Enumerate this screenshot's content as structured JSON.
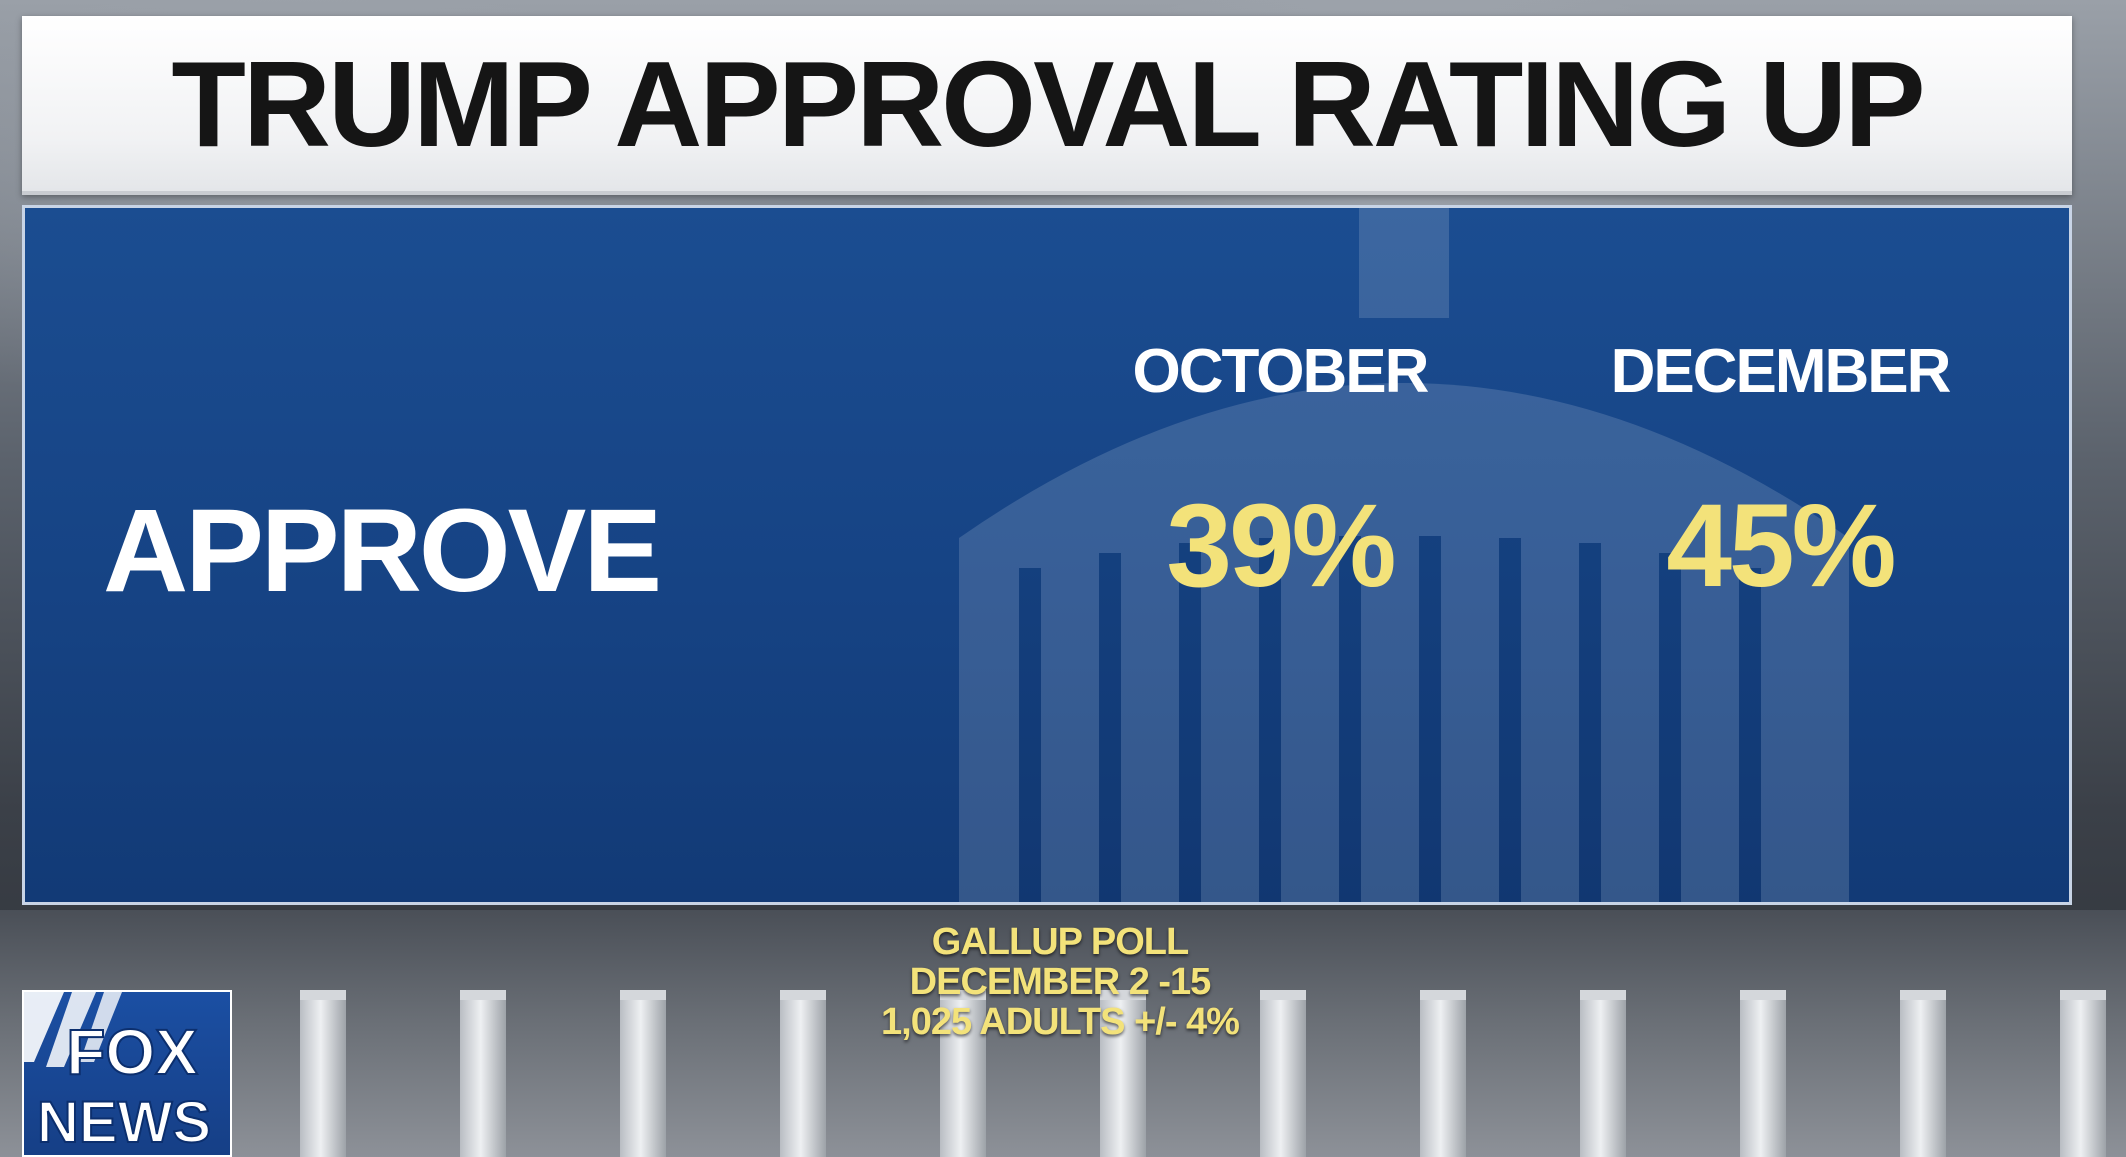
{
  "title": "TRUMP APPROVAL RATING UP",
  "table": {
    "row_label": "APPROVE",
    "columns": [
      {
        "header": "OCTOBER",
        "value": "39%"
      },
      {
        "header": "DECEMBER",
        "value": "45%"
      }
    ]
  },
  "source": {
    "line1": "GALLUP POLL",
    "line2": "DECEMBER 2 -15",
    "line3": "1,025 ADULTS +/- 4%"
  },
  "logo": {
    "line1": "FOX",
    "line2": "NEWS"
  },
  "colors": {
    "panel_blue": "#164384",
    "value_yellow": "#f3e27a",
    "title_text": "#151515"
  },
  "icons": [
    "fox-news-logo",
    "capitol-building-silhouette"
  ]
}
